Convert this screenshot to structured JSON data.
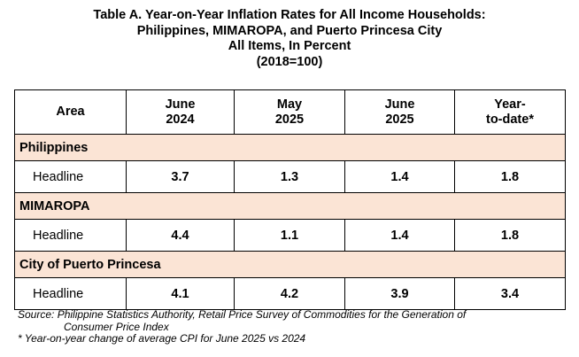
{
  "title": {
    "line1": "Table A. Year-on-Year Inflation Rates for All Income Households:",
    "line2": "Philippines, MIMAROPA, and Puerto Princesa City",
    "line3": "All Items, In Percent",
    "line4": "(2018=100)"
  },
  "columns": [
    {
      "line1": "Area",
      "line2": ""
    },
    {
      "line1": "June",
      "line2": "2024"
    },
    {
      "line1": "May",
      "line2": "2025"
    },
    {
      "line1": "June",
      "line2": "2025"
    },
    {
      "line1": "Year-",
      "line2": "to-date*"
    }
  ],
  "groups": [
    {
      "name": "Philippines",
      "row": {
        "label": "Headline",
        "values": [
          "3.7",
          "1.3",
          "1.4",
          "1.8"
        ]
      }
    },
    {
      "name": "MIMAROPA",
      "row": {
        "label": "Headline",
        "values": [
          "4.4",
          "1.1",
          "1.4",
          "1.8"
        ]
      }
    },
    {
      "name": "City of Puerto Princesa",
      "row": {
        "label": "Headline",
        "values": [
          "4.1",
          "4.2",
          "3.9",
          "3.4"
        ]
      }
    }
  ],
  "notes": {
    "source_line1": "Source: Philippine Statistics Authority, Retail Price Survey of Commodities for the Generation of",
    "source_line2": "Consumer Price Index",
    "footnote": "* Year-on-year change of average CPI for June 2025 vs 2024"
  },
  "colors": {
    "group_row_fill": "#fbe4d5",
    "border": "#000000"
  }
}
